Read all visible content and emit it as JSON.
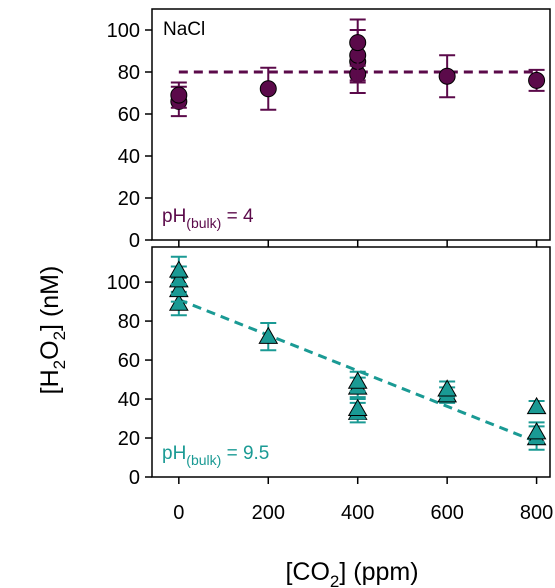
{
  "chart_data": [
    {
      "type": "scatter",
      "panel": "top",
      "annotation_label": "NaCl",
      "ph_label": {
        "base": "pH",
        "subscript": "(bulk)",
        "value": " = 4"
      },
      "color": "#5b0a4a",
      "marker": "circle",
      "ylim": [
        0,
        110
      ],
      "y_ticks": [
        0,
        20,
        40,
        60,
        80,
        100
      ],
      "grid": false,
      "points": [
        {
          "x": 0,
          "y": 66,
          "err": 7
        },
        {
          "x": 0,
          "y": 69,
          "err": 6
        },
        {
          "x": 200,
          "y": 72,
          "err": 10
        },
        {
          "x": 400,
          "y": 79,
          "err": 9
        },
        {
          "x": 400,
          "y": 85,
          "err": 10
        },
        {
          "x": 400,
          "y": 88,
          "err": 12
        },
        {
          "x": 400,
          "y": 94,
          "err": 11
        },
        {
          "x": 600,
          "y": 78,
          "err": 10
        },
        {
          "x": 800,
          "y": 76,
          "err": 5
        }
      ],
      "trend": {
        "style": "dashed",
        "x": [
          0,
          800
        ],
        "y": [
          80,
          80
        ]
      }
    },
    {
      "type": "scatter",
      "panel": "bottom",
      "ph_label": {
        "base": "pH",
        "subscript": "(bulk)",
        "value": " = 9.5"
      },
      "color": "#1a9a94",
      "marker": "triangle",
      "ylim": [
        0,
        118
      ],
      "y_ticks": [
        0,
        20,
        40,
        60,
        80,
        100
      ],
      "grid": false,
      "points": [
        {
          "x": 0,
          "y": 89,
          "err": 6
        },
        {
          "x": 0,
          "y": 96,
          "err": 6
        },
        {
          "x": 0,
          "y": 101,
          "err": 7
        },
        {
          "x": 0,
          "y": 106,
          "err": 7
        },
        {
          "x": 200,
          "y": 72,
          "err": 7
        },
        {
          "x": 400,
          "y": 33,
          "err": 5
        },
        {
          "x": 400,
          "y": 35,
          "err": 5
        },
        {
          "x": 400,
          "y": 46,
          "err": 5
        },
        {
          "x": 400,
          "y": 49,
          "err": 5
        },
        {
          "x": 600,
          "y": 42,
          "err": 4
        },
        {
          "x": 600,
          "y": 45,
          "err": 4
        },
        {
          "x": 800,
          "y": 20,
          "err": 6
        },
        {
          "x": 800,
          "y": 23,
          "err": 5
        },
        {
          "x": 800,
          "y": 36,
          "err": 3
        }
      ],
      "trend": {
        "style": "dashed",
        "x": [
          0,
          800
        ],
        "y": [
          91,
          18
        ]
      }
    }
  ],
  "shared": {
    "xlim": [
      -60,
      830
    ],
    "x_ticks": [
      0,
      200,
      400,
      600,
      800
    ],
    "ylabel": {
      "open": "[H",
      "sub1": "2",
      "mid": "O",
      "sub2": "2",
      "close": "] (nM)"
    },
    "xlabel": {
      "open": "[CO",
      "sub": "2",
      "close": "] (ppm)"
    }
  }
}
